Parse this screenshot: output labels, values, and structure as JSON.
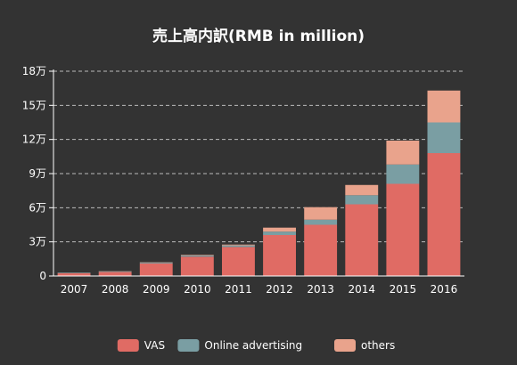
{
  "chart_data": {
    "type": "bar",
    "stacked": true,
    "title": "売上高内訳(RMB in million)",
    "categories": [
      "2007",
      "2008",
      "2009",
      "2010",
      "2011",
      "2012",
      "2013",
      "2014",
      "2015",
      "2016"
    ],
    "series": [
      {
        "name": "VAS",
        "color": "#e06b64",
        "values": [
          2400,
          3500,
          11000,
          17000,
          25500,
          36000,
          45000,
          63000,
          81000,
          108000
        ]
      },
      {
        "name": "Online advertising",
        "color": "#7a9ea3",
        "values": [
          500,
          600,
          800,
          1000,
          1400,
          3000,
          4500,
          8000,
          17000,
          27000
        ]
      },
      {
        "name": "others",
        "color": "#e9a38c",
        "values": [
          100,
          200,
          300,
          500,
          700,
          3500,
          11000,
          9000,
          21000,
          28000
        ]
      }
    ],
    "y_ticks": [
      0,
      30000,
      60000,
      90000,
      120000,
      150000,
      180000
    ],
    "y_tick_labels": [
      "0",
      "3万",
      "6万",
      "9万",
      "12万",
      "15万",
      "18万"
    ],
    "ylim": [
      0,
      180000
    ],
    "grid": "horizontal dashed",
    "legend_position": "bottom-center"
  }
}
